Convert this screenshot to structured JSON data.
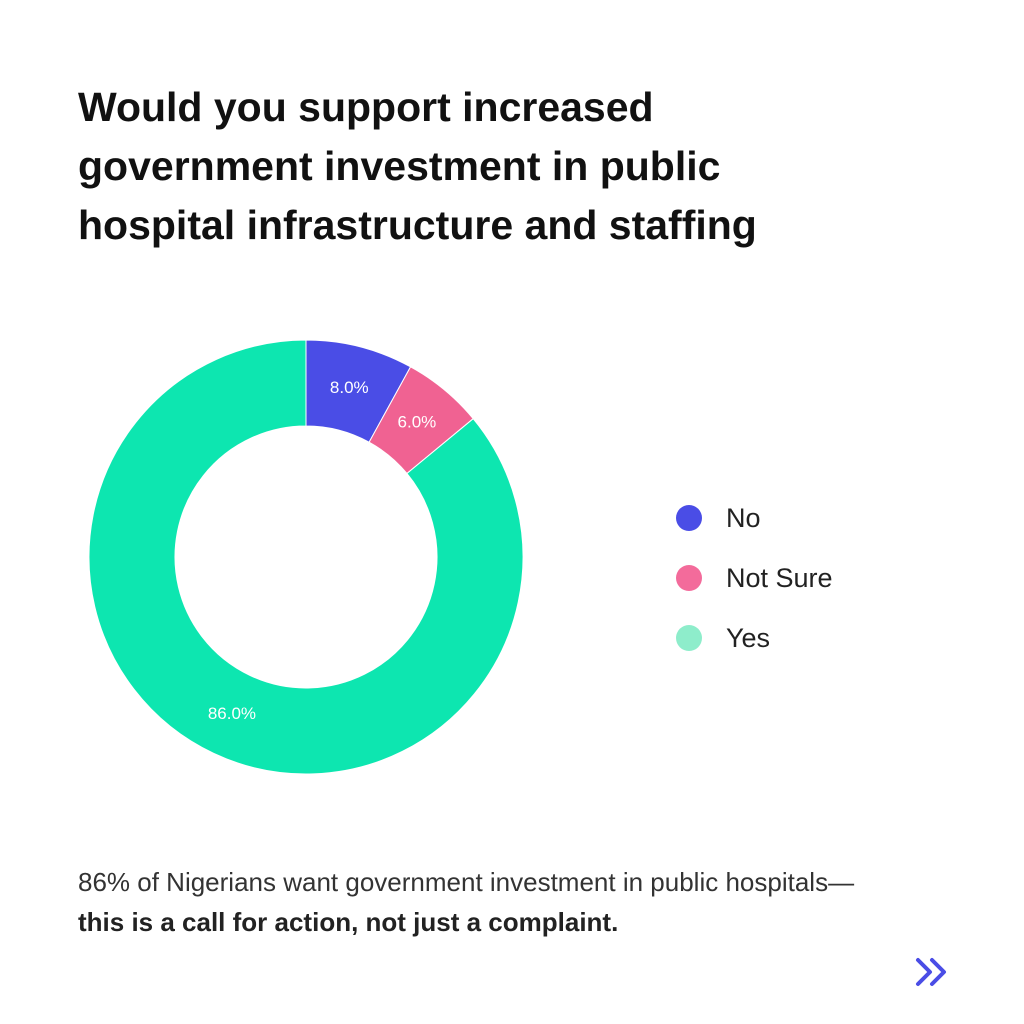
{
  "title": "Would you support increased government investment in public hospital infrastructure and staffing",
  "chart_data": {
    "type": "pie",
    "variant": "donut",
    "categories": [
      "No",
      "Not Sure",
      "Yes"
    ],
    "values": [
      8.0,
      6.0,
      86.0
    ],
    "data_labels": [
      "8.0%",
      "6.0%",
      "86.0%"
    ],
    "colors": [
      "#4a4de6",
      "#f06292",
      "#0de6b0"
    ],
    "legend": {
      "placement": "right",
      "entries": [
        "No",
        "Not Sure",
        "Yes"
      ],
      "colors": [
        "#4a4de6",
        "#f36b9b",
        "#8eedcb"
      ]
    }
  },
  "caption": {
    "regular": "86% of Nigerians want government investment in public hospitals—",
    "bold": "this is a call for action, not just a complaint."
  },
  "nav": {
    "icon": "double-chevron-right-icon",
    "color": "#4a4de6"
  }
}
